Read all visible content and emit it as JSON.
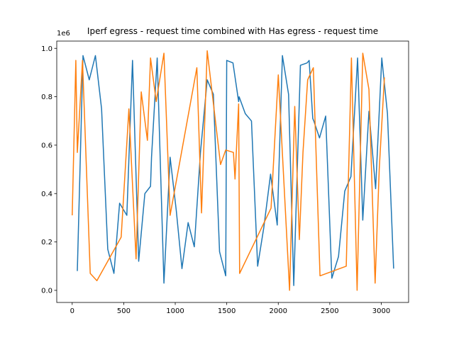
{
  "chart_data": {
    "type": "line",
    "title": "Iperf egress - request time combined with Has egress - request time",
    "xlabel": "",
    "ylabel": "",
    "y_offset_label": "1e6",
    "xlim": [
      -150,
      3265
    ],
    "ylim": [
      -0.05,
      1.03
    ],
    "xticks": [
      0,
      500,
      1000,
      1500,
      2000,
      2500,
      3000
    ],
    "yticks": [
      0.0,
      0.2,
      0.4,
      0.6,
      0.8,
      1.0
    ],
    "xtick_labels": [
      "0",
      "500",
      "1000",
      "1500",
      "2000",
      "2500",
      "3000"
    ],
    "ytick_labels": [
      "0.0",
      "0.2",
      "0.4",
      "0.6",
      "0.8",
      "1.0"
    ],
    "grid": false,
    "series": [
      {
        "color": "#1f77b4",
        "x": [
          50,
          105,
          165,
          225,
          285,
          345,
          405,
          460,
          530,
          585,
          645,
          705,
          760,
          770,
          825,
          890,
          950,
          1010,
          1065,
          1125,
          1185,
          1245,
          1310,
          1370,
          1430,
          1490,
          1500,
          1560,
          1615,
          1620,
          1680,
          1740,
          1800,
          1860,
          1925,
          1990,
          2040,
          2100,
          2150,
          2215,
          2280,
          2300,
          2335,
          2345,
          2400,
          2460,
          2520,
          2585,
          2645,
          2705,
          2770,
          2820,
          2880,
          2945,
          3005,
          3060,
          3120
        ],
        "y": [
          0.08,
          0.97,
          0.87,
          0.97,
          0.75,
          0.17,
          0.07,
          0.36,
          0.31,
          0.95,
          0.12,
          0.4,
          0.43,
          0.55,
          0.96,
          0.03,
          0.55,
          0.33,
          0.09,
          0.28,
          0.18,
          0.57,
          0.87,
          0.81,
          0.16,
          0.06,
          0.95,
          0.94,
          0.78,
          0.8,
          0.73,
          0.7,
          0.1,
          0.26,
          0.48,
          0.27,
          0.97,
          0.81,
          0.02,
          0.93,
          0.94,
          0.95,
          0.71,
          0.7,
          0.63,
          0.72,
          0.05,
          0.14,
          0.41,
          0.47,
          0.96,
          0.29,
          0.74,
          0.42,
          0.96,
          0.73,
          0.09
        ]
      },
      {
        "color": "#ff7f0e",
        "x": [
          0,
          35,
          50,
          100,
          175,
          240,
          475,
          550,
          620,
          670,
          730,
          760,
          815,
          890,
          950,
          1210,
          1255,
          1310,
          1440,
          1490,
          1565,
          1580,
          1615,
          1625,
          1930,
          2000,
          2110,
          2160,
          2205,
          2240,
          2285,
          2340,
          2405,
          2660,
          2710,
          2765,
          2820,
          2880,
          2940,
          2980,
          3030
        ],
        "y": [
          0.31,
          0.95,
          0.57,
          0.95,
          0.07,
          0.04,
          0.22,
          0.75,
          0.13,
          0.82,
          0.62,
          0.96,
          0.78,
          0.98,
          0.31,
          0.92,
          0.32,
          0.99,
          0.52,
          0.58,
          0.57,
          0.46,
          0.77,
          0.07,
          0.34,
          0.89,
          0.0,
          0.76,
          0.21,
          0.57,
          0.87,
          0.92,
          0.06,
          0.1,
          0.96,
          0.0,
          0.98,
          0.83,
          0.03,
          0.5,
          0.88
        ]
      }
    ]
  }
}
